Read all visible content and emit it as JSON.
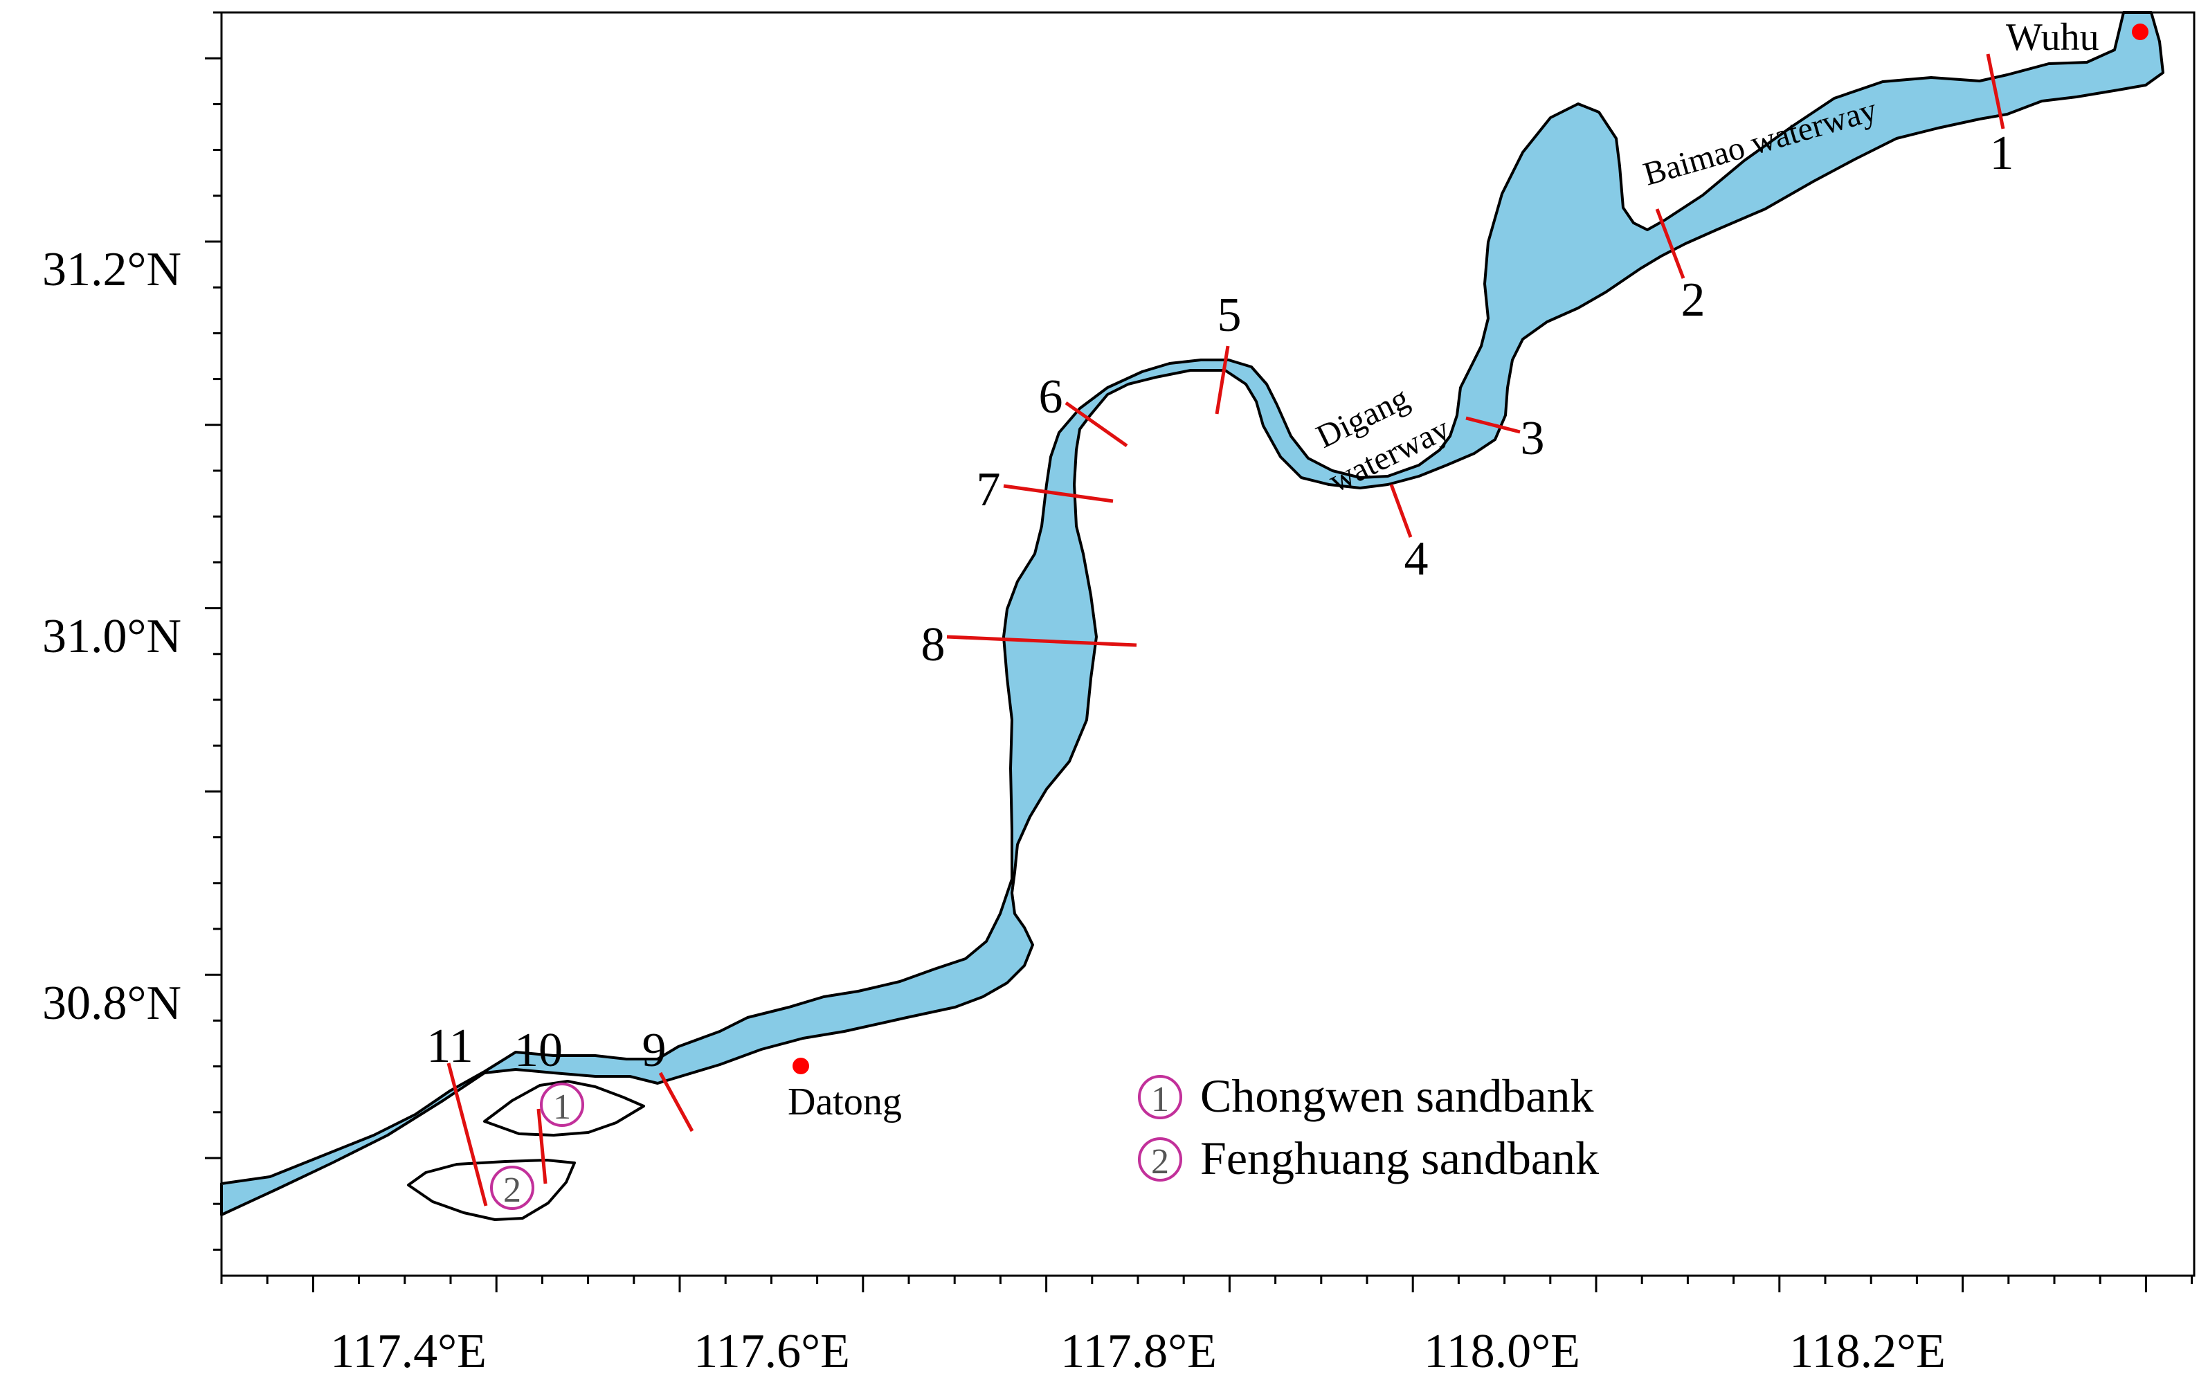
{
  "colors": {
    "river": "#87cbe6",
    "outline": "#000000",
    "section": "#e01010",
    "city": "#ff0000",
    "sandbank_marker": "#c2309a"
  },
  "axes": {
    "x_ticks": [
      "117.4°E",
      "117.6°E",
      "117.8°E",
      "118.0°E",
      "118.2°E"
    ],
    "y_ticks": [
      "31.2°N",
      "31.0°N",
      "30.8°N"
    ]
  },
  "cities": [
    {
      "id": "wuhu",
      "name": "Wuhu"
    },
    {
      "id": "datong",
      "name": "Datong"
    }
  ],
  "waterways": {
    "baimao": "Baimao waterway",
    "digang_line1": "Digang",
    "digang_line2": "waterway"
  },
  "sections": [
    "1",
    "2",
    "3",
    "4",
    "5",
    "6",
    "7",
    "8",
    "9",
    "10",
    "11"
  ],
  "sandbanks": [
    {
      "marker": "1",
      "name": "Chongwen sandbank"
    },
    {
      "marker": "2",
      "name": "Fenghuang sandbank"
    }
  ]
}
